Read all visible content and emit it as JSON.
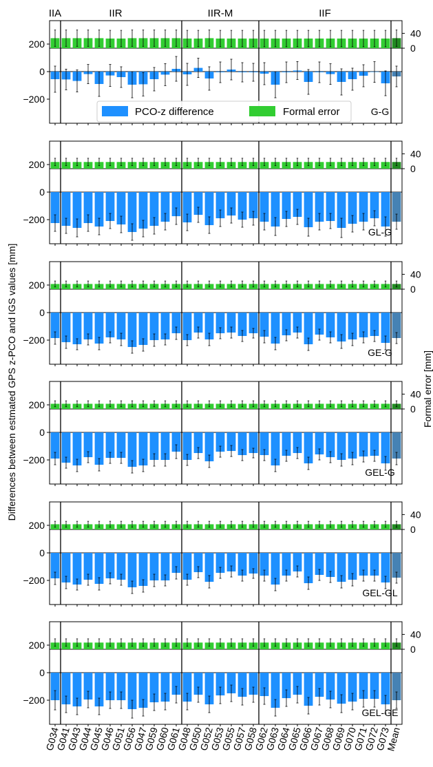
{
  "chart_data": {
    "type": "bar",
    "ylabel": "Differences between estmated GPS z-PCO and IGS values [mm]",
    "ylabel_right": "Formal error [mm]",
    "group_labels": [
      "IIA",
      "IIR",
      "IIR-M",
      "IIF"
    ],
    "categories": [
      "G034",
      "G041",
      "G043",
      "G044",
      "G045",
      "G046",
      "G051",
      "G056",
      "G047",
      "G059",
      "G060",
      "G061",
      "G048",
      "G050",
      "G052",
      "G053",
      "G055",
      "G057",
      "G058",
      "G062",
      "G063",
      "G064",
      "G065",
      "G066",
      "G067",
      "G068",
      "G069",
      "G070",
      "G071",
      "G072",
      "G073",
      "Mean"
    ],
    "left_yticks": [
      -200,
      0,
      200
    ],
    "right_yticks": [
      0,
      40
    ],
    "legend": [
      "PCO-z difference",
      "Formal error"
    ],
    "legend_location": "lower center of first panel",
    "colors": {
      "diff": "#1e90ff",
      "formal": "#32cd32",
      "mean_diff": "#4682b4",
      "mean_formal": "#228b22"
    },
    "panels": [
      {
        "name": "G-G",
        "values": [
          -55,
          -57,
          -68,
          -18,
          -90,
          -28,
          -40,
          -95,
          -92,
          -55,
          -22,
          20,
          -20,
          27,
          -50,
          -5,
          15,
          -5,
          -5,
          -15,
          -95,
          -5,
          8,
          -75,
          -5,
          -18,
          -75,
          -55,
          -30,
          -3,
          -85,
          -35
        ],
        "errors": [
          95,
          75,
          80,
          70,
          90,
          80,
          75,
          95,
          85,
          85,
          80,
          90,
          80,
          70,
          85,
          75,
          75,
          70,
          65,
          80,
          95,
          75,
          65,
          90,
          75,
          75,
          95,
          80,
          80,
          75,
          90,
          75
        ],
        "formal": [
          27,
          27,
          27,
          27,
          27,
          26,
          26,
          27,
          27,
          27,
          27,
          27,
          26,
          26,
          27,
          26,
          26,
          26,
          26,
          26,
          26,
          26,
          26,
          26,
          26,
          26,
          26,
          26,
          26,
          26,
          26,
          27
        ],
        "formal_err": [
          22,
          22,
          22,
          22,
          22,
          22,
          22,
          22,
          22,
          22,
          22,
          22,
          22,
          22,
          22,
          22,
          22,
          22,
          22,
          22,
          22,
          22,
          22,
          22,
          22,
          22,
          22,
          22,
          22,
          22,
          22,
          22
        ]
      },
      {
        "name": "GL-G",
        "values": [
          -225,
          -245,
          -260,
          -225,
          -250,
          -210,
          -235,
          -290,
          -265,
          -245,
          -215,
          -175,
          -220,
          -165,
          -240,
          -190,
          -170,
          -200,
          -190,
          -215,
          -250,
          -195,
          -180,
          -255,
          -215,
          -210,
          -260,
          -230,
          -215,
          -190,
          -250,
          -215
        ],
        "errors": [
          60,
          55,
          65,
          60,
          60,
          55,
          60,
          60,
          60,
          60,
          60,
          60,
          60,
          55,
          60,
          60,
          55,
          55,
          50,
          60,
          65,
          55,
          55,
          65,
          60,
          55,
          70,
          60,
          60,
          55,
          70,
          55
        ],
        "formal": [
          18,
          18,
          18,
          18,
          18,
          18,
          18,
          18,
          18,
          18,
          18,
          18,
          18,
          18,
          18,
          18,
          18,
          18,
          18,
          18,
          18,
          18,
          18,
          18,
          18,
          18,
          18,
          18,
          18,
          18,
          18,
          18
        ],
        "formal_err": [
          10,
          10,
          10,
          10,
          10,
          10,
          10,
          10,
          10,
          10,
          10,
          10,
          10,
          10,
          10,
          10,
          10,
          10,
          10,
          10,
          10,
          10,
          10,
          10,
          10,
          10,
          10,
          10,
          10,
          10,
          10,
          10
        ]
      },
      {
        "name": "GE-G",
        "values": [
          -185,
          -215,
          -230,
          -195,
          -225,
          -180,
          -195,
          -250,
          -235,
          -200,
          -195,
          -150,
          -200,
          -145,
          -195,
          -150,
          -145,
          -170,
          -150,
          -175,
          -225,
          -165,
          -145,
          -230,
          -160,
          -180,
          -210,
          -195,
          -180,
          -170,
          -220,
          -185
        ],
        "errors": [
          45,
          45,
          40,
          40,
          45,
          40,
          45,
          45,
          45,
          45,
          40,
          45,
          40,
          40,
          45,
          40,
          40,
          40,
          35,
          45,
          45,
          40,
          40,
          45,
          40,
          40,
          50,
          45,
          40,
          40,
          50,
          40
        ],
        "formal": [
          14,
          14,
          14,
          14,
          14,
          14,
          14,
          14,
          14,
          14,
          14,
          14,
          14,
          14,
          14,
          14,
          14,
          14,
          14,
          14,
          14,
          14,
          14,
          14,
          14,
          14,
          14,
          14,
          14,
          14,
          14,
          14
        ],
        "formal_err": [
          8,
          8,
          8,
          8,
          8,
          8,
          8,
          8,
          8,
          8,
          8,
          8,
          8,
          8,
          8,
          8,
          8,
          8,
          8,
          8,
          8,
          8,
          8,
          8,
          8,
          8,
          8,
          8,
          8,
          8,
          8,
          8
        ]
      },
      {
        "name": "GEL-G",
        "values": [
          -190,
          -220,
          -240,
          -180,
          -235,
          -185,
          -185,
          -250,
          -240,
          -200,
          -200,
          -140,
          -200,
          -150,
          -210,
          -140,
          -135,
          -165,
          -150,
          -165,
          -240,
          -170,
          -150,
          -225,
          -160,
          -180,
          -200,
          -190,
          -175,
          -170,
          -225,
          -190
        ],
        "errors": [
          45,
          40,
          45,
          40,
          45,
          40,
          40,
          45,
          45,
          45,
          45,
          50,
          40,
          40,
          45,
          40,
          40,
          40,
          35,
          40,
          45,
          40,
          40,
          45,
          40,
          40,
          45,
          45,
          40,
          40,
          50,
          45
        ],
        "formal": [
          14,
          14,
          14,
          14,
          14,
          14,
          14,
          14,
          14,
          14,
          14,
          14,
          14,
          14,
          14,
          14,
          14,
          14,
          14,
          14,
          14,
          14,
          14,
          14,
          14,
          14,
          14,
          14,
          14,
          14,
          14,
          14
        ],
        "formal_err": [
          8,
          8,
          8,
          8,
          8,
          8,
          8,
          8,
          8,
          8,
          8,
          8,
          8,
          8,
          8,
          8,
          8,
          8,
          8,
          8,
          8,
          8,
          8,
          8,
          8,
          8,
          8,
          8,
          8,
          8,
          8,
          8
        ]
      },
      {
        "name": "GEL-GL",
        "values": [
          -185,
          -215,
          -230,
          -195,
          -225,
          -185,
          -195,
          -250,
          -240,
          -200,
          -200,
          -145,
          -195,
          -140,
          -210,
          -145,
          -135,
          -165,
          -150,
          -165,
          -230,
          -165,
          -135,
          -220,
          -160,
          -175,
          -210,
          -195,
          -165,
          -165,
          -215,
          -180
        ],
        "errors": [
          45,
          45,
          40,
          40,
          45,
          40,
          40,
          45,
          45,
          45,
          40,
          45,
          40,
          40,
          45,
          40,
          40,
          40,
          35,
          40,
          45,
          40,
          40,
          45,
          40,
          40,
          45,
          45,
          40,
          40,
          45,
          40
        ],
        "formal": [
          14,
          14,
          14,
          14,
          14,
          14,
          14,
          14,
          14,
          14,
          14,
          14,
          14,
          14,
          14,
          14,
          14,
          14,
          14,
          14,
          14,
          14,
          14,
          14,
          14,
          14,
          14,
          14,
          14,
          14,
          14,
          14
        ],
        "formal_err": [
          8,
          8,
          8,
          8,
          8,
          8,
          8,
          8,
          8,
          8,
          8,
          8,
          8,
          8,
          8,
          8,
          8,
          8,
          8,
          8,
          8,
          8,
          8,
          8,
          8,
          8,
          8,
          8,
          8,
          8,
          8,
          8
        ]
      },
      {
        "name": "GEL-GE",
        "values": [
          -200,
          -230,
          -245,
          -195,
          -245,
          -200,
          -200,
          -265,
          -255,
          -215,
          -210,
          -160,
          -210,
          -160,
          -230,
          -165,
          -150,
          -175,
          -160,
          -170,
          -255,
          -185,
          -160,
          -240,
          -175,
          -195,
          -225,
          -210,
          -190,
          -190,
          -230,
          -200
        ],
        "errors": [
          70,
          60,
          60,
          60,
          60,
          60,
          60,
          65,
          60,
          60,
          60,
          60,
          60,
          55,
          60,
          60,
          60,
          60,
          55,
          60,
          60,
          60,
          60,
          60,
          60,
          60,
          65,
          60,
          60,
          60,
          65,
          60
        ],
        "formal": [
          18,
          18,
          18,
          18,
          18,
          18,
          18,
          18,
          18,
          18,
          18,
          18,
          18,
          18,
          18,
          18,
          18,
          18,
          18,
          18,
          18,
          18,
          18,
          18,
          18,
          18,
          18,
          18,
          18,
          18,
          18,
          18
        ],
        "formal_err": [
          10,
          10,
          10,
          10,
          10,
          10,
          10,
          10,
          10,
          10,
          10,
          10,
          10,
          10,
          10,
          10,
          10,
          10,
          10,
          10,
          10,
          10,
          10,
          10,
          10,
          10,
          10,
          10,
          10,
          10,
          10,
          10
        ]
      }
    ]
  }
}
